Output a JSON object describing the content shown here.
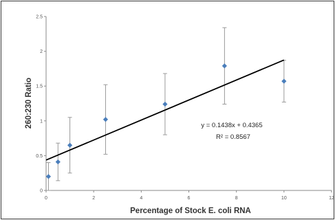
{
  "chart_data": {
    "type": "scatter",
    "title": "",
    "xlabel": "Percentage of Stock E. coli RNA",
    "ylabel": "260:230 Ratio",
    "xlim": [
      0,
      12
    ],
    "ylim": [
      0,
      2.5
    ],
    "x_ticks": [
      0,
      2,
      4,
      6,
      8,
      10,
      12
    ],
    "y_ticks": [
      "0",
      "0.5",
      "1",
      "1.5",
      "2",
      "2.5"
    ],
    "grid": false,
    "legend": "none",
    "series": [
      {
        "points": [
          {
            "x": 0.1,
            "y": 0.2,
            "err": 0.2
          },
          {
            "x": 0.5,
            "y": 0.41,
            "err": 0.27
          },
          {
            "x": 1.0,
            "y": 0.65,
            "err": 0.4
          },
          {
            "x": 2.5,
            "y": 1.02,
            "err": 0.5
          },
          {
            "x": 5.0,
            "y": 1.24,
            "err": 0.44
          },
          {
            "x": 7.5,
            "y": 1.79,
            "err": 0.55
          },
          {
            "x": 10.0,
            "y": 1.57,
            "err": 0.3
          }
        ],
        "marker_color": "#4a7ebb",
        "errorbar_color": "#9a9a9a"
      }
    ],
    "trendline": {
      "slope": 0.1438,
      "intercept": 0.4365,
      "x_range": [
        0,
        10
      ],
      "color": "#000000",
      "equation": "y = 0.1438x + 0.4365",
      "r_squared": "R² = 0.8567"
    }
  }
}
